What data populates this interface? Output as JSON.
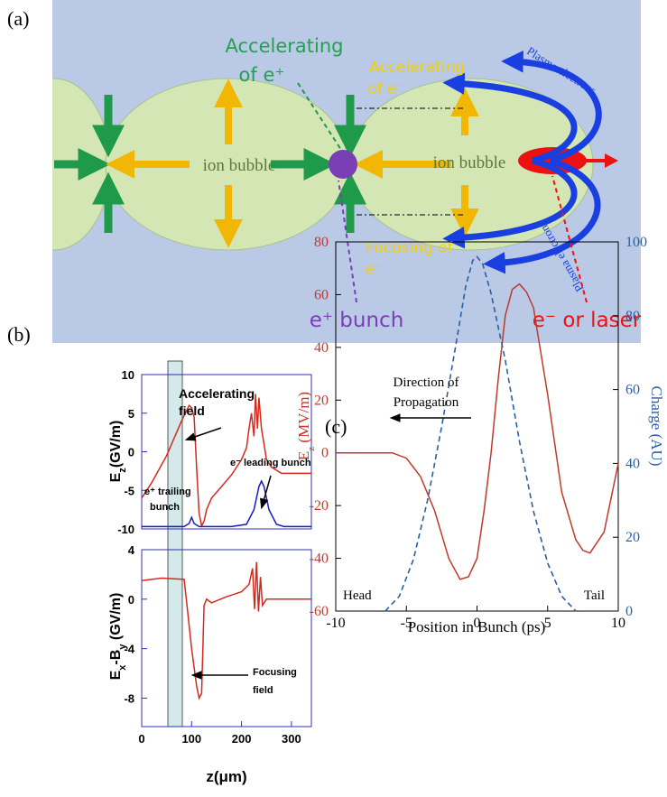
{
  "panel_labels": [
    "(a)",
    "(b)",
    "(c)"
  ],
  "diagram": {
    "accelerating_positron": [
      "Accelerating",
      "of e⁺"
    ],
    "accelerating_electron": [
      "Accelerating",
      "of e⁻"
    ],
    "focusing_electron": [
      "Focusing of",
      "e⁻"
    ],
    "bubbles": [
      "ion bubble",
      "ion bubble"
    ],
    "positron_bunch": "e⁺ bunch",
    "driver": "e⁻ or laser",
    "plasma_electrons": [
      "Plasma electrons",
      "Plasma electrons"
    ]
  },
  "chart_data": [
    {
      "type": "line",
      "y_label": [
        "E",
        "z",
        "(GV/m)"
      ],
      "xlim": [
        0,
        340
      ],
      "ylim": [
        -10,
        10
      ],
      "yticks": [
        10,
        5,
        0,
        -5,
        -10
      ],
      "series": [
        {
          "color": "#d42a1e",
          "x": [
            0,
            20,
            50,
            80,
            95,
            100,
            105,
            110,
            115,
            120,
            125,
            130,
            140,
            160,
            180,
            200,
            210,
            215,
            220,
            225,
            228,
            232,
            235,
            240,
            245,
            250,
            260,
            280,
            300,
            340
          ],
          "values": [
            -6,
            -4,
            -0.5,
            4,
            6,
            5.7,
            4.5,
            -2,
            -8,
            -9.6,
            -9,
            -7.5,
            -6,
            -4.5,
            -3,
            -1,
            0.5,
            3,
            5,
            2,
            7.5,
            3,
            7,
            3,
            1,
            -1,
            -2,
            -2.8,
            -2.8,
            -2.8
          ]
        },
        {
          "color": "#1a1acc",
          "x": [
            0,
            85,
            95,
            100,
            105,
            115,
            180,
            210,
            225,
            235,
            240,
            245,
            255,
            270,
            285,
            340
          ],
          "values": [
            -9.7,
            -9.7,
            -9.3,
            -8.5,
            -9.3,
            -9.7,
            -9.7,
            -9.4,
            -7.5,
            -4.5,
            -3.8,
            -4.5,
            -7.5,
            -9.4,
            -9.7,
            -9.7
          ]
        }
      ],
      "annotations": [
        [
          "Accelerating",
          "field"
        ],
        [
          "e⁺ trailing",
          "bunch"
        ],
        [
          "e⁻ leading bunch"
        ]
      ]
    },
    {
      "type": "line",
      "y_label": [
        "E",
        "x",
        "-B",
        "y",
        " (GV/m)"
      ],
      "xlim": [
        0,
        340
      ],
      "ylim": [
        -10.3,
        4
      ],
      "yticks": [
        4,
        0,
        -4,
        -8
      ],
      "xticks": [
        0,
        100,
        200,
        300
      ],
      "x_label": "z(μm)",
      "series": [
        {
          "color": "#d42a1e",
          "x": [
            0,
            40,
            85,
            92,
            100,
            110,
            115,
            120,
            125,
            130,
            140,
            170,
            200,
            215,
            222,
            226,
            230,
            234,
            238,
            242,
            250,
            270,
            340
          ],
          "values": [
            1.5,
            1.7,
            1.6,
            -1,
            -4,
            -7,
            -8,
            -7.6,
            -0.5,
            0,
            -0.3,
            0.2,
            0.6,
            1.2,
            2.5,
            -0.8,
            3,
            -1,
            1.8,
            -0.5,
            0,
            0,
            0
          ]
        }
      ],
      "annotations": [
        [
          "Focusing",
          "field"
        ]
      ]
    },
    {
      "type": "line",
      "y_label": [
        "E",
        "z",
        " (MV/m)"
      ],
      "y2_label": "Charge (AU)",
      "x_label": "Position in Bunch (ps)",
      "xlim": [
        -10,
        10
      ],
      "ylim": [
        -60,
        80
      ],
      "y2lim": [
        0,
        100
      ],
      "xticks": [
        -10,
        -5,
        0,
        5,
        10
      ],
      "yticks": [
        -60,
        -40,
        -20,
        0,
        20,
        40,
        60,
        80
      ],
      "y2ticks": [
        0,
        20,
        40,
        60,
        80,
        100
      ],
      "series": [
        {
          "color": "#c0392b",
          "linestyle": "solid",
          "x": [
            -10,
            -6,
            -5,
            -4,
            -3,
            -2,
            -1.2,
            -0.6,
            0,
            0.5,
            1,
            1.5,
            2,
            2.5,
            3,
            3.5,
            4,
            5,
            6,
            7,
            7.5,
            8,
            9,
            10
          ],
          "values": [
            0,
            0,
            -2,
            -9,
            -22,
            -40,
            -48,
            -47,
            -40,
            -22,
            0,
            28,
            52,
            62,
            64,
            61,
            55,
            22,
            -15,
            -33,
            -37,
            -38,
            -30,
            -4
          ]
        },
        {
          "color": "#2c5fa0",
          "linestyle": "dashed",
          "axis": "y2",
          "x": [
            -6.5,
            -5.5,
            -4.5,
            -3.5,
            -2.5,
            -1.5,
            -0.8,
            -0.3,
            0,
            0.4,
            1,
            2,
            3,
            4,
            5,
            6,
            7
          ],
          "values": [
            0,
            4,
            14,
            30,
            50,
            72,
            88,
            95,
            96,
            94,
            86,
            68,
            46,
            27,
            13,
            4,
            0
          ]
        }
      ],
      "annotations": [
        [
          "Direction of",
          "Propagation"
        ],
        [
          "Head"
        ],
        [
          "Tail"
        ]
      ]
    }
  ]
}
